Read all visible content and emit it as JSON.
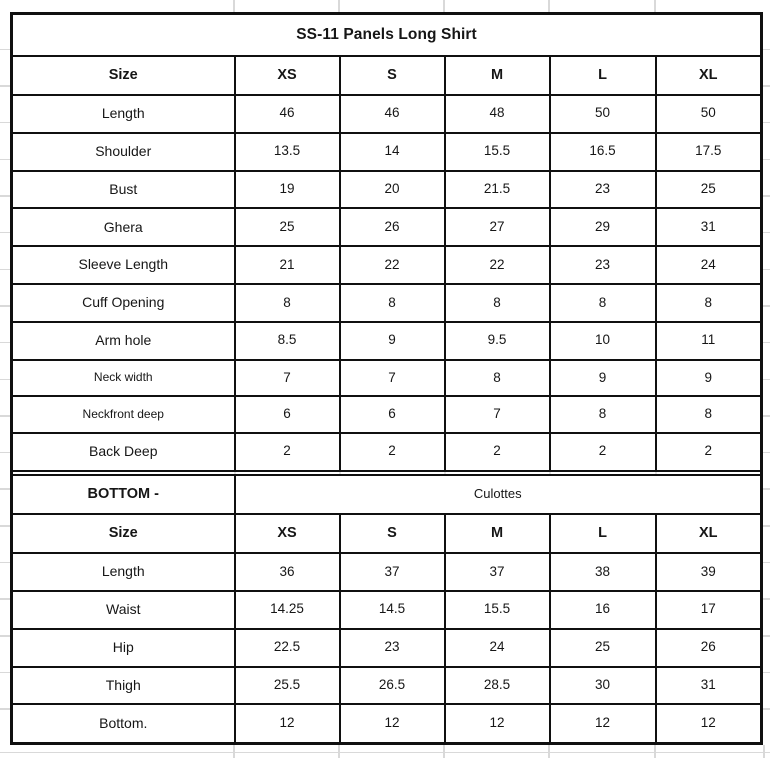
{
  "page": {
    "background_color": "#ffffff",
    "table_border_color": "#101010",
    "gridline_tick_color": "#d9d9d9"
  },
  "chart_data": [
    {
      "type": "table",
      "title": "SS-11 Panels Long Shirt",
      "columns": [
        "Size",
        "XS",
        "S",
        "M",
        "L",
        "XL"
      ],
      "rows": [
        {
          "label": "Length",
          "values": [
            "46",
            "46",
            "48",
            "50",
            "50"
          ]
        },
        {
          "label": "Shoulder",
          "values": [
            "13.5",
            "14",
            "15.5",
            "16.5",
            "17.5"
          ]
        },
        {
          "label": "Bust",
          "values": [
            "19",
            "20",
            "21.5",
            "23",
            "25"
          ]
        },
        {
          "label": "Ghera",
          "values": [
            "25",
            "26",
            "27",
            "29",
            "31"
          ]
        },
        {
          "label": "Sleeve Length",
          "values": [
            "21",
            "22",
            "22",
            "23",
            "24"
          ]
        },
        {
          "label": "Cuff Opening",
          "values": [
            "8",
            "8",
            "8",
            "8",
            "8"
          ]
        },
        {
          "label": "Arm hole",
          "values": [
            "8.5",
            "9",
            "9.5",
            "10",
            "11"
          ]
        },
        {
          "label": "Neck width",
          "small_label": true,
          "values": [
            "7",
            "7",
            "8",
            "9",
            "9"
          ]
        },
        {
          "label": "Neckfront deep",
          "small_label": true,
          "values": [
            "6",
            "6",
            "7",
            "8",
            "8"
          ]
        },
        {
          "label": "Back Deep",
          "values": [
            "2",
            "2",
            "2",
            "2",
            "2"
          ]
        }
      ]
    },
    {
      "type": "table",
      "section_label": "BOTTOM -",
      "section_category": "Culottes",
      "columns": [
        "Size",
        "XS",
        "S",
        "M",
        "L",
        "XL"
      ],
      "rows": [
        {
          "label": "Length",
          "values": [
            "36",
            "37",
            "37",
            "38",
            "39"
          ]
        },
        {
          "label": "Waist",
          "values": [
            "14.25",
            "14.5",
            "15.5",
            "16",
            "17"
          ]
        },
        {
          "label": "Hip",
          "values": [
            "22.5",
            "23",
            "24",
            "25",
            "26"
          ]
        },
        {
          "label": "Thigh",
          "values": [
            "25.5",
            "26.5",
            "28.5",
            "30",
            "31"
          ]
        },
        {
          "label": "Bottom.",
          "values": [
            "12",
            "12",
            "12",
            "12",
            "12"
          ]
        }
      ]
    }
  ]
}
